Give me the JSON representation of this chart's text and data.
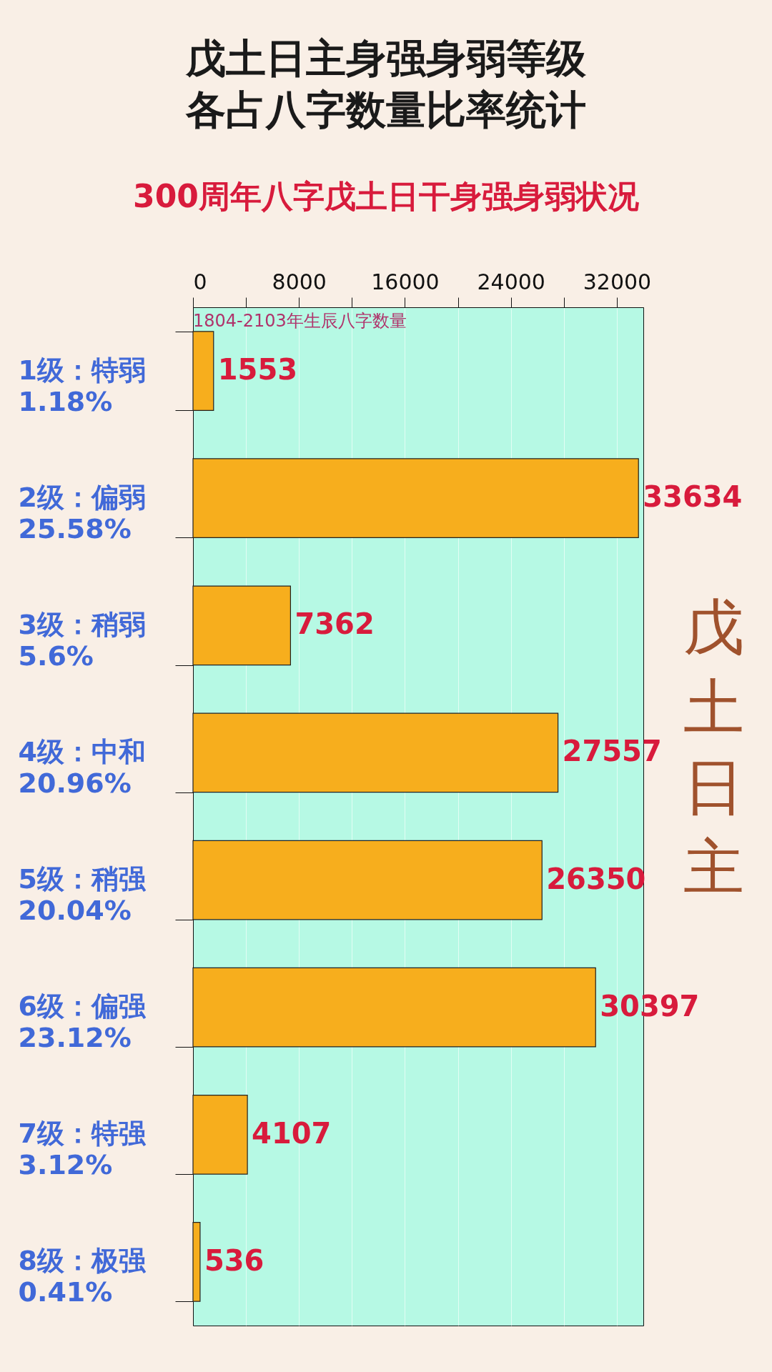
{
  "chart_data": {
    "type": "bar",
    "orientation": "horizontal",
    "title": [
      "戊土日主身强身弱等级",
      "各占八字数量比率统计"
    ],
    "subtitle": "300周年八字戊土日干身强身弱状况",
    "xlabel": "1804-2103年生辰八字数量",
    "categories": [
      "1级：特弱\n1.18%",
      "2级：偏弱\n25.58%",
      "3级：稍弱\n5.6%",
      "4级：中和\n20.96%",
      "5级：稍强\n20.04%",
      "6级：偏强\n23.12%",
      "7级：特强\n3.12%",
      "8级：极强\n0.41%"
    ],
    "values": [
      1553,
      33634,
      7362,
      27557,
      26350,
      30397,
      4107,
      536
    ],
    "color": "#f7ae1d",
    "xlim": [
      0,
      34000
    ],
    "xticks": [
      0,
      {
        "value": 4000,
        "label": null
      },
      8000,
      {
        "value": 12000,
        "label": null
      },
      16000,
      {
        "value": 20000,
        "label": null
      },
      24000,
      {
        "value": 28000,
        "label": null
      },
      32000
    ],
    "grid": "x",
    "data_labels": true,
    "annotations": [
      "戊土日主"
    ]
  }
}
